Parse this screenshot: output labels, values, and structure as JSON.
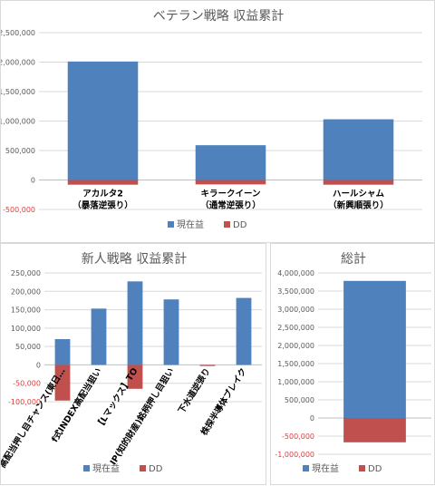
{
  "colors": {
    "current": "#4f81bd",
    "dd": "#c0504d",
    "negative_tick": "#e03a3a"
  },
  "legend": {
    "current": "現在益",
    "dd": "DD"
  },
  "chart_data": [
    {
      "id": "veteran",
      "type": "bar",
      "title": "ベテラン戦略 収益累計",
      "categories": [
        {
          "line1": "アカルタ2",
          "line2": "（暴落逆張り）"
        },
        {
          "line1": "キラークイーン",
          "line2": "（通常逆張り）"
        },
        {
          "line1": "ハールシャム",
          "line2": "（新興順張り）"
        }
      ],
      "series": [
        {
          "name": "現在益",
          "values": [
            2010000,
            590000,
            1030000
          ]
        },
        {
          "name": "DD",
          "values": [
            -80000,
            -75000,
            -80000
          ]
        }
      ],
      "ylim": [
        -500000,
        2500000
      ],
      "yticks": [
        {
          "v": 2500000,
          "label": "2,500,000"
        },
        {
          "v": 2000000,
          "label": "2,000,000"
        },
        {
          "v": 1500000,
          "label": "1,500,000"
        },
        {
          "v": 1000000,
          "label": "1,000,000"
        },
        {
          "v": 500000,
          "label": "500,000"
        },
        {
          "v": 0,
          "label": "0"
        },
        {
          "v": -500000,
          "label": "-500,000"
        }
      ],
      "grid": true,
      "legend_position": "bottom"
    },
    {
      "id": "newcomer",
      "type": "bar",
      "title": "新人戦略 収益累計",
      "categories": [
        "高配当押し目チャンス(東日…",
        "f式INDEX高配当狙い",
        "【Lマックス】TO",
        "IP(知的財産)銘柄押し目狙い",
        "下水道逆張り",
        "株探半導体ブレイク"
      ],
      "series": [
        {
          "name": "現在益",
          "values": [
            70000,
            153000,
            227000,
            178000,
            0,
            182000
          ]
        },
        {
          "name": "DD",
          "values": [
            -97000,
            0,
            -65000,
            0,
            -3000,
            0
          ]
        }
      ],
      "ylim": [
        -100000,
        250000
      ],
      "yticks": [
        {
          "v": 250000,
          "label": "250,000"
        },
        {
          "v": 200000,
          "label": "200,000"
        },
        {
          "v": 150000,
          "label": "150,000"
        },
        {
          "v": 100000,
          "label": "100,000"
        },
        {
          "v": 50000,
          "label": "50,000"
        },
        {
          "v": 0,
          "label": "0"
        },
        {
          "v": -50000,
          "label": "-50,000"
        },
        {
          "v": -100000,
          "label": "-100,000"
        }
      ],
      "grid": true,
      "legend_position": "bottom"
    },
    {
      "id": "total",
      "type": "bar",
      "title": "総計",
      "categories": [
        ""
      ],
      "series": [
        {
          "name": "現在益",
          "values": [
            3780000
          ]
        },
        {
          "name": "DD",
          "values": [
            -670000
          ]
        }
      ],
      "ylim": [
        -1000000,
        4000000
      ],
      "yticks": [
        {
          "v": 4000000,
          "label": "4,000,000"
        },
        {
          "v": 3500000,
          "label": "3,500,000"
        },
        {
          "v": 3000000,
          "label": "3,000,000"
        },
        {
          "v": 2500000,
          "label": "2,500,000"
        },
        {
          "v": 2000000,
          "label": "2,000,000"
        },
        {
          "v": 1500000,
          "label": "1,500,000"
        },
        {
          "v": 1000000,
          "label": "1,000,000"
        },
        {
          "v": 500000,
          "label": "500,000"
        },
        {
          "v": 0,
          "label": "0"
        },
        {
          "v": -500000,
          "label": "-500,000"
        },
        {
          "v": -1000000,
          "label": "-1,000,000"
        }
      ],
      "grid": true,
      "legend_position": "bottom"
    }
  ]
}
